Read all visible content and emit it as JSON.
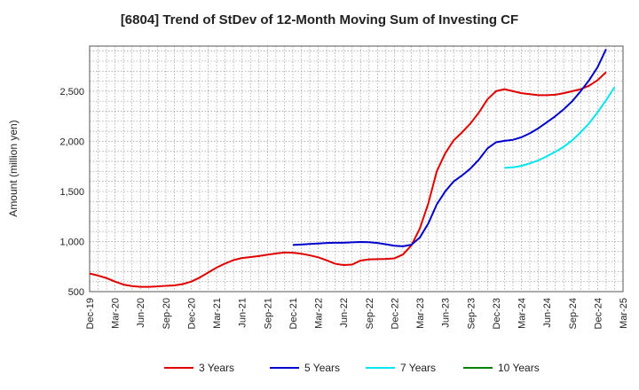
{
  "chart_data": {
    "type": "line",
    "title": "[6804]  Trend of StDev of 12-Month Moving Sum of Investing CF",
    "xlabel": "",
    "ylabel": "Amount (million yen)",
    "ylim": [
      500,
      2950
    ],
    "yticks": [
      500,
      1000,
      1500,
      2000,
      2500
    ],
    "ytick_labels": [
      "500",
      "1,000",
      "1,500",
      "2,000",
      "2,500"
    ],
    "x_range": [
      "Dec-19",
      "Mar-25"
    ],
    "x_tick_labels": [
      "Dec-19",
      "Mar-20",
      "Jun-20",
      "Sep-20",
      "Dec-20",
      "Mar-21",
      "Jun-21",
      "Sep-21",
      "Dec-21",
      "Mar-22",
      "Jun-22",
      "Sep-22",
      "Dec-22",
      "Mar-23",
      "Jun-23",
      "Sep-23",
      "Dec-23",
      "Mar-24",
      "Jun-24",
      "Sep-24",
      "Dec-24",
      "Mar-25"
    ],
    "grid": true,
    "legend_position": "bottom",
    "series": [
      {
        "name": "3 Years",
        "color": "#e00000",
        "start_index": 0,
        "values": [
          680,
          660,
          635,
          600,
          570,
          555,
          548,
          548,
          552,
          558,
          562,
          575,
          600,
          640,
          690,
          740,
          780,
          815,
          835,
          845,
          855,
          868,
          880,
          890,
          888,
          878,
          862,
          842,
          812,
          778,
          765,
          770,
          810,
          822,
          824,
          826,
          832,
          870,
          960,
          1130,
          1380,
          1700,
          1880,
          2010,
          2090,
          2180,
          2290,
          2420,
          2500,
          2520,
          2500,
          2480,
          2470,
          2460,
          2460,
          2465,
          2480,
          2500,
          2520,
          2555,
          2610,
          2690
        ]
      },
      {
        "name": "5 Years",
        "color": "#0000cc",
        "start_index": 24,
        "values": [
          965,
          970,
          975,
          980,
          985,
          988,
          988,
          992,
          995,
          993,
          985,
          972,
          958,
          952,
          968,
          1040,
          1180,
          1370,
          1500,
          1600,
          1660,
          1730,
          1820,
          1930,
          1990,
          2005,
          2015,
          2040,
          2080,
          2130,
          2190,
          2250,
          2320,
          2400,
          2500,
          2610,
          2740,
          2920
        ]
      },
      {
        "name": "7 Years",
        "color": "#00e5ee",
        "start_index": 49,
        "values": [
          1735,
          1740,
          1755,
          1780,
          1810,
          1850,
          1895,
          1945,
          2010,
          2090,
          2180,
          2290,
          2410,
          2540
        ]
      },
      {
        "name": "10 Years",
        "color": "#008000",
        "start_index": 0,
        "values": []
      }
    ]
  }
}
